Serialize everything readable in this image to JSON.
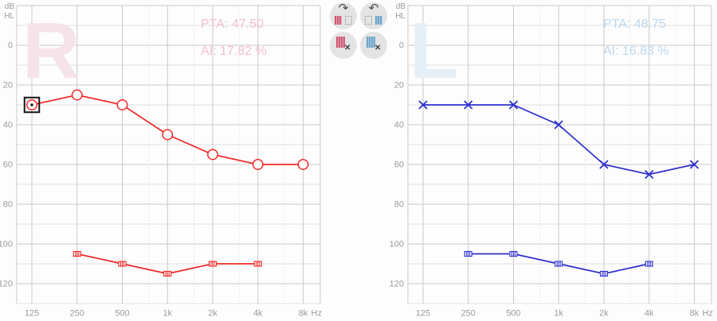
{
  "axis": {
    "unit_label": "Hz",
    "db_line1": "dB",
    "db_line2": "HL"
  },
  "panels": {
    "right": {
      "watermark": "R",
      "watermark_color": "#f6e3e9",
      "stats_color": "#f4c0cc",
      "curve_color": "#f22727"
    },
    "left": {
      "watermark": "L",
      "watermark_color": "#e6eff6",
      "stats_color": "#bdd8ef",
      "curve_color": "#2f2fd0"
    }
  },
  "toolbar": {
    "red_swatch": "#cf5b76",
    "red_swatch_light": "#e2a3b2",
    "blue_swatch": "#6ea6c9",
    "blue_swatch_light": "#aecde2",
    "buttons": [
      {
        "name": "copy-right-to-left-button"
      },
      {
        "name": "copy-left-to-right-button"
      },
      {
        "name": "clear-right-curve-button"
      },
      {
        "name": "clear-left-curve-button"
      }
    ]
  },
  "icons": {
    "arrow_cw": "↷",
    "arrow_ccw": "↶",
    "clear_x": "✕"
  },
  "chart_data": [
    {
      "type": "line",
      "title": "Right ear audiogram",
      "categories": [
        "125",
        "250",
        "500",
        "1k",
        "2k",
        "4k",
        "8k"
      ],
      "x_unit": "Hz",
      "ylabel": "dB HL",
      "ylim": [
        -20,
        130
      ],
      "y_ticks": [
        0,
        20,
        40,
        60,
        80,
        100,
        120
      ],
      "grid": true,
      "legend": "none",
      "annotations": [
        "PTA: 47.50",
        "AI: 17.82 %"
      ],
      "series": [
        {
          "name": "air-conduction-right",
          "marker": "circle",
          "values": [
            30,
            25,
            30,
            45,
            55,
            60,
            60
          ],
          "selected_point_index": 0
        },
        {
          "name": "ucl-right",
          "marker": "striped_square",
          "values": [
            null,
            105,
            110,
            115,
            110,
            110,
            null
          ]
        }
      ]
    },
    {
      "type": "line",
      "title": "Left ear audiogram",
      "categories": [
        "125",
        "250",
        "500",
        "1k",
        "2k",
        "4k",
        "8k"
      ],
      "x_unit": "Hz",
      "ylabel": "dB HL",
      "ylim": [
        -20,
        130
      ],
      "y_ticks": [
        0,
        20,
        40,
        60,
        80,
        100,
        120
      ],
      "grid": true,
      "legend": "none",
      "annotations": [
        "PTA: 48.75",
        "AI: 16.83 %"
      ],
      "series": [
        {
          "name": "air-conduction-left",
          "marker": "x",
          "values": [
            30,
            30,
            30,
            40,
            60,
            65,
            60
          ],
          "selected_point_index": null
        },
        {
          "name": "ucl-left",
          "marker": "striped_square",
          "values": [
            null,
            105,
            105,
            110,
            115,
            110,
            null
          ]
        }
      ]
    }
  ]
}
